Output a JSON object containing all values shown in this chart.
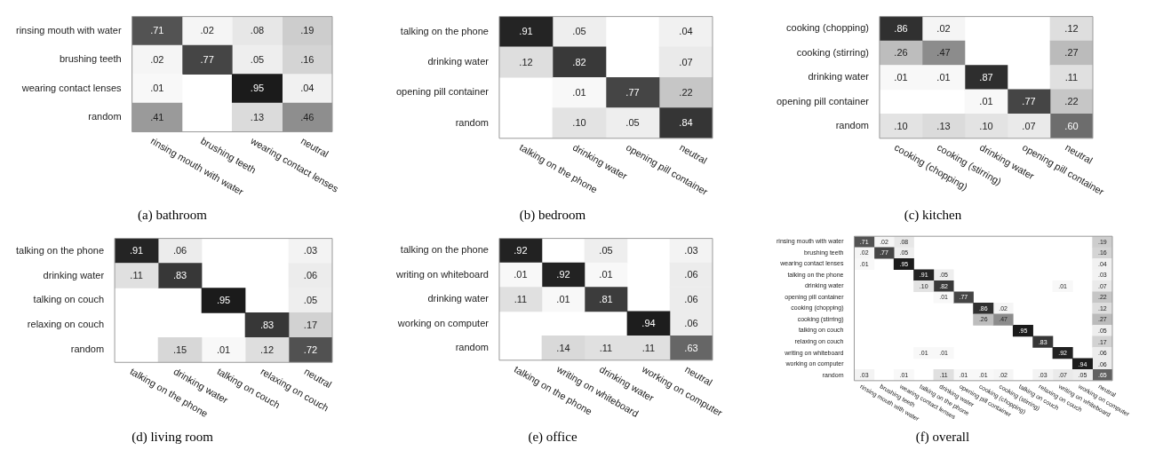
{
  "chart_data": [
    {
      "type": "heatmap",
      "title": "(a) bathroom",
      "categories": [
        "rinsing mouth with water",
        "brushing teeth",
        "wearing contact lenses",
        "neutral"
      ],
      "y_categories": [
        "rinsing mouth with water",
        "brushing teeth",
        "wearing contact lenses",
        "random"
      ],
      "cells": [
        [
          0.71,
          0.02,
          0.08,
          0.19
        ],
        [
          0.02,
          0.77,
          0.05,
          0.16
        ],
        [
          0.01,
          null,
          0.95,
          0.04
        ],
        [
          0.41,
          null,
          0.13,
          0.46
        ]
      ],
      "cell_labels": [
        [
          ".71",
          ".02",
          ".08",
          ".19"
        ],
        [
          ".02",
          ".77",
          ".05",
          ".16"
        ],
        [
          ".01",
          null,
          ".95",
          ".04"
        ],
        [
          ".41",
          null,
          ".13",
          ".46"
        ]
      ]
    },
    {
      "type": "heatmap",
      "title": "(b) bedroom",
      "categories": [
        "talking on the phone",
        "drinking water",
        "opening pill container",
        "neutral"
      ],
      "y_categories": [
        "talking on the phone",
        "drinking water",
        "opening pill container",
        "random"
      ],
      "cells": [
        [
          0.91,
          0.05,
          null,
          0.04
        ],
        [
          0.12,
          0.82,
          null,
          0.07
        ],
        [
          null,
          0.01,
          0.77,
          0.22
        ],
        [
          null,
          0.1,
          0.05,
          0.84
        ]
      ],
      "cell_labels": [
        [
          ".91",
          ".05",
          null,
          ".04"
        ],
        [
          ".12",
          ".82",
          null,
          ".07"
        ],
        [
          null,
          ".01",
          ".77",
          ".22"
        ],
        [
          null,
          ".10",
          ".05",
          ".84"
        ]
      ]
    },
    {
      "type": "heatmap",
      "title": "(c) kitchen",
      "categories": [
        "cooking (chopping)",
        "cooking (stirring)",
        "drinking water",
        "opening pill container",
        "neutral"
      ],
      "y_categories": [
        "cooking (chopping)",
        "cooking (stirring)",
        "drinking water",
        "opening pill container",
        "random"
      ],
      "cells": [
        [
          0.86,
          0.02,
          null,
          null,
          0.12
        ],
        [
          0.26,
          0.47,
          null,
          null,
          0.27
        ],
        [
          0.01,
          0.01,
          0.87,
          null,
          0.11
        ],
        [
          null,
          null,
          0.01,
          0.77,
          0.22
        ],
        [
          0.1,
          0.13,
          0.1,
          0.07,
          0.6
        ]
      ],
      "cell_labels": [
        [
          ".86",
          ".02",
          null,
          null,
          ".12"
        ],
        [
          ".26",
          ".47",
          null,
          null,
          ".27"
        ],
        [
          ".01",
          ".01",
          ".87",
          null,
          ".11"
        ],
        [
          null,
          null,
          ".01",
          ".77",
          ".22"
        ],
        [
          ".10",
          ".13",
          ".10",
          ".07",
          ".60"
        ]
      ]
    },
    {
      "type": "heatmap",
      "title": "(d) living room",
      "categories": [
        "talking on the phone",
        "drinking water",
        "talking on couch",
        "relaxing on couch",
        "neutral"
      ],
      "y_categories": [
        "talking on the phone",
        "drinking water",
        "talking on couch",
        "relaxing on couch",
        "random"
      ],
      "cells": [
        [
          0.91,
          0.06,
          null,
          null,
          0.03
        ],
        [
          0.11,
          0.83,
          null,
          null,
          0.06
        ],
        [
          null,
          null,
          0.95,
          null,
          0.05
        ],
        [
          null,
          null,
          null,
          0.83,
          0.17
        ],
        [
          null,
          0.15,
          0.01,
          0.12,
          0.72
        ]
      ],
      "cell_labels": [
        [
          ".91",
          ".06",
          null,
          null,
          ".03"
        ],
        [
          ".11",
          ".83",
          null,
          null,
          ".06"
        ],
        [
          null,
          null,
          ".95",
          null,
          ".05"
        ],
        [
          null,
          null,
          null,
          ".83",
          ".17"
        ],
        [
          null,
          ".15",
          ".01",
          ".12",
          ".72"
        ]
      ]
    },
    {
      "type": "heatmap",
      "title": "(e) office",
      "categories": [
        "talking on the phone",
        "writing on whiteboard",
        "drinking water",
        "working on computer",
        "neutral"
      ],
      "y_categories": [
        "talking on the phone",
        "writing on whiteboard",
        "drinking water",
        "working on computer",
        "random"
      ],
      "cells": [
        [
          0.92,
          null,
          0.05,
          null,
          0.03
        ],
        [
          0.01,
          0.92,
          0.01,
          null,
          0.06
        ],
        [
          0.11,
          0.01,
          0.81,
          null,
          0.06
        ],
        [
          null,
          null,
          null,
          0.94,
          0.06
        ],
        [
          null,
          0.14,
          0.11,
          0.11,
          0.63
        ]
      ],
      "cell_labels": [
        [
          ".92",
          null,
          ".05",
          null,
          ".03"
        ],
        [
          ".01",
          ".92",
          ".01",
          null,
          ".06"
        ],
        [
          ".11",
          ".01",
          ".81",
          null,
          ".06"
        ],
        [
          null,
          null,
          null,
          ".94",
          ".06"
        ],
        [
          null,
          ".14",
          ".11",
          ".11",
          ".63"
        ]
      ]
    },
    {
      "type": "heatmap",
      "title": "(f) overall",
      "categories": [
        "rinsing mouth with water",
        "brushing teeth",
        "wearing contact lenses",
        "talking on the phone",
        "drinking water",
        "opening pill container",
        "cooking (chopping)",
        "cooking (stirring)",
        "talking on couch",
        "relaxing on couch",
        "writing on whiteboard",
        "working on computer",
        "neutral"
      ],
      "y_categories": [
        "rinsing mouth with water",
        "brushing teeth",
        "wearing contact lenses",
        "talking on the phone",
        "drinking water",
        "opening pill container",
        "cooking (chopping)",
        "cooking (stirring)",
        "talking on couch",
        "relaxing on couch",
        "writing on whiteboard",
        "working on computer",
        "random"
      ],
      "cells": [
        [
          0.71,
          0.02,
          0.08,
          null,
          null,
          null,
          null,
          null,
          null,
          null,
          null,
          null,
          0.19
        ],
        [
          0.02,
          0.77,
          0.05,
          null,
          null,
          null,
          null,
          null,
          null,
          null,
          null,
          null,
          0.16
        ],
        [
          0.01,
          null,
          0.95,
          null,
          null,
          null,
          null,
          null,
          null,
          null,
          null,
          null,
          0.04
        ],
        [
          null,
          null,
          null,
          0.91,
          0.05,
          null,
          null,
          null,
          null,
          null,
          null,
          null,
          0.03
        ],
        [
          null,
          null,
          null,
          0.1,
          0.82,
          null,
          null,
          null,
          null,
          null,
          0.01,
          null,
          0.07
        ],
        [
          null,
          null,
          null,
          null,
          0.01,
          0.77,
          null,
          null,
          null,
          null,
          null,
          null,
          0.22
        ],
        [
          null,
          null,
          null,
          null,
          null,
          null,
          0.86,
          0.02,
          null,
          null,
          null,
          null,
          0.12
        ],
        [
          null,
          null,
          null,
          null,
          null,
          null,
          0.26,
          0.47,
          null,
          null,
          null,
          null,
          0.27
        ],
        [
          null,
          null,
          null,
          null,
          null,
          null,
          null,
          null,
          0.95,
          null,
          null,
          null,
          0.05
        ],
        [
          null,
          null,
          null,
          null,
          null,
          null,
          null,
          null,
          null,
          0.83,
          null,
          null,
          0.17
        ],
        [
          null,
          null,
          null,
          0.01,
          0.01,
          null,
          null,
          null,
          null,
          null,
          0.92,
          null,
          0.06
        ],
        [
          null,
          null,
          null,
          null,
          null,
          null,
          null,
          null,
          null,
          null,
          null,
          0.94,
          0.06
        ],
        [
          0.03,
          null,
          0.01,
          null,
          0.11,
          0.01,
          0.01,
          0.02,
          null,
          0.03,
          0.07,
          0.05,
          0.65
        ]
      ],
      "cell_labels": [
        [
          ".71",
          ".02",
          ".08",
          null,
          null,
          null,
          null,
          null,
          null,
          null,
          null,
          null,
          ".19"
        ],
        [
          ".02",
          ".77",
          ".05",
          null,
          null,
          null,
          null,
          null,
          null,
          null,
          null,
          null,
          ".16"
        ],
        [
          ".01",
          null,
          ".95",
          null,
          null,
          null,
          null,
          null,
          null,
          null,
          null,
          null,
          ".04"
        ],
        [
          null,
          null,
          null,
          ".91",
          ".05",
          null,
          null,
          null,
          null,
          null,
          null,
          null,
          ".03"
        ],
        [
          null,
          null,
          null,
          ".10",
          ".82",
          null,
          null,
          null,
          null,
          null,
          ".01",
          null,
          ".07"
        ],
        [
          null,
          null,
          null,
          null,
          ".01",
          ".77",
          null,
          null,
          null,
          null,
          null,
          null,
          ".22"
        ],
        [
          null,
          null,
          null,
          null,
          null,
          null,
          ".86",
          ".02",
          null,
          null,
          null,
          null,
          ".12"
        ],
        [
          null,
          null,
          null,
          null,
          null,
          null,
          ".26",
          ".47",
          null,
          null,
          null,
          null,
          ".27"
        ],
        [
          null,
          null,
          null,
          null,
          null,
          null,
          null,
          null,
          ".95",
          null,
          null,
          null,
          ".05"
        ],
        [
          null,
          null,
          null,
          null,
          null,
          null,
          null,
          null,
          null,
          ".83",
          null,
          null,
          ".17"
        ],
        [
          null,
          null,
          null,
          ".01",
          ".01",
          null,
          null,
          null,
          null,
          null,
          ".92",
          null,
          ".06"
        ],
        [
          null,
          null,
          null,
          null,
          null,
          null,
          null,
          null,
          null,
          null,
          null,
          ".94",
          ".06"
        ],
        [
          ".03",
          null,
          ".01",
          null,
          ".11",
          ".01",
          ".01",
          ".02",
          null,
          ".03",
          ".07",
          ".05",
          ".65"
        ]
      ]
    }
  ]
}
